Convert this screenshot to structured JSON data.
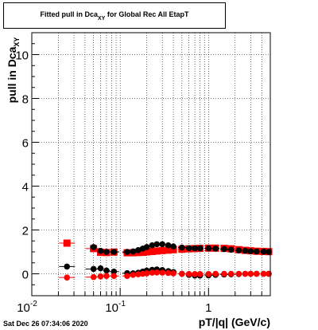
{
  "title": {
    "prefix": "Fitted pull in Dca",
    "subscript": "XY",
    "suffix": " for Global Rec All EtapT"
  },
  "ylabel": {
    "main": "pull in Dca",
    "subscript": "XY"
  },
  "xlabel": "pT/|q| (GeV/c)",
  "datestamp": "Sat Dec 26 07:34:06 2020",
  "chart_data": {
    "type": "scatter",
    "title": "Fitted pull in Dca_XY for Global Rec All EtapT",
    "xlabel": "pT/|q| (GeV/c)",
    "ylabel": "pull in Dca_XY",
    "xscale": "log",
    "xlim": [
      0.01,
      5
    ],
    "ylim": [
      -1,
      11
    ],
    "yticks": [
      0,
      2,
      4,
      6,
      8,
      10
    ],
    "xtick_labels": [
      "10^-2",
      "10^-1",
      "1"
    ],
    "grid": true,
    "series": [
      {
        "marker": "square",
        "color": "#ff0000",
        "points": [
          [
            0.025,
            1.4
          ],
          [
            0.05,
            1.15
          ],
          [
            0.06,
            0.98
          ],
          [
            0.07,
            0.97
          ],
          [
            0.085,
            0.99
          ],
          [
            0.12,
            0.96
          ],
          [
            0.14,
            0.96
          ],
          [
            0.16,
            0.97
          ],
          [
            0.18,
            0.98
          ],
          [
            0.2,
            1.0
          ],
          [
            0.23,
            1.02
          ],
          [
            0.26,
            1.04
          ],
          [
            0.3,
            1.06
          ],
          [
            0.35,
            1.08
          ],
          [
            0.4,
            1.1
          ],
          [
            0.5,
            1.12
          ],
          [
            0.6,
            1.14
          ],
          [
            0.7,
            1.15
          ],
          [
            0.8,
            1.16
          ],
          [
            1.0,
            1.17
          ],
          [
            1.2,
            1.17
          ],
          [
            1.5,
            1.16
          ],
          [
            1.8,
            1.14
          ],
          [
            2.2,
            1.1
          ],
          [
            2.6,
            1.07
          ],
          [
            3.0,
            1.05
          ],
          [
            3.5,
            1.03
          ],
          [
            4.2,
            1.02
          ],
          [
            4.8,
            1.01
          ]
        ]
      },
      {
        "marker": "circle",
        "color": "#000000",
        "points": [
          [
            0.025,
            0.33
          ],
          [
            0.05,
            0.22
          ],
          [
            0.06,
            0.25
          ],
          [
            0.07,
            0.15
          ],
          [
            0.085,
            0.1
          ],
          [
            0.12,
            0.03
          ],
          [
            0.14,
            0.02
          ],
          [
            0.16,
            0.05
          ],
          [
            0.18,
            0.1
          ],
          [
            0.2,
            0.15
          ],
          [
            0.23,
            0.18
          ],
          [
            0.26,
            0.2
          ],
          [
            0.3,
            0.17
          ],
          [
            0.35,
            0.12
          ],
          [
            0.4,
            0.08
          ],
          [
            0.5,
            0.0
          ],
          [
            0.6,
            -0.05
          ],
          [
            0.7,
            -0.08
          ],
          [
            0.8,
            -0.08
          ],
          [
            1.0,
            -0.07
          ],
          [
            1.2,
            -0.05
          ],
          [
            1.5,
            -0.03
          ],
          [
            1.8,
            -0.02
          ],
          [
            2.2,
            -0.01
          ],
          [
            2.6,
            0.0
          ],
          [
            3.0,
            0.0
          ],
          [
            3.5,
            0.0
          ],
          [
            4.2,
            0.0
          ],
          [
            4.8,
            0.0
          ]
        ]
      },
      {
        "marker": "circle",
        "color": "#000000",
        "points": [
          [
            0.05,
            1.22
          ],
          [
            0.06,
            1.05
          ],
          [
            0.07,
            1.0
          ],
          [
            0.085,
            1.0
          ],
          [
            0.12,
            1.0
          ],
          [
            0.14,
            1.02
          ],
          [
            0.16,
            1.08
          ],
          [
            0.18,
            1.15
          ],
          [
            0.2,
            1.22
          ],
          [
            0.23,
            1.3
          ],
          [
            0.26,
            1.35
          ],
          [
            0.3,
            1.35
          ],
          [
            0.35,
            1.3
          ],
          [
            0.4,
            1.25
          ],
          [
            0.5,
            1.2
          ],
          [
            0.6,
            1.17
          ],
          [
            0.7,
            1.16
          ],
          [
            0.8,
            1.16
          ],
          [
            1.0,
            1.16
          ],
          [
            1.2,
            1.15
          ],
          [
            1.5,
            1.13
          ],
          [
            1.8,
            1.1
          ],
          [
            2.2,
            1.07
          ],
          [
            2.6,
            1.05
          ],
          [
            3.0,
            1.03
          ],
          [
            3.5,
            1.02
          ],
          [
            4.2,
            1.01
          ],
          [
            4.8,
            1.0
          ]
        ]
      },
      {
        "marker": "circle",
        "color": "#ff0000",
        "points": [
          [
            0.025,
            -0.17
          ],
          [
            0.05,
            -0.15
          ],
          [
            0.06,
            -0.12
          ],
          [
            0.07,
            -0.1
          ],
          [
            0.085,
            -0.1
          ],
          [
            0.12,
            -0.1
          ],
          [
            0.14,
            -0.05
          ],
          [
            0.16,
            -0.02
          ],
          [
            0.18,
            0.0
          ],
          [
            0.2,
            0.02
          ],
          [
            0.23,
            0.05
          ],
          [
            0.26,
            0.06
          ],
          [
            0.3,
            0.05
          ],
          [
            0.35,
            0.04
          ],
          [
            0.4,
            0.02
          ],
          [
            0.5,
            0.0
          ],
          [
            0.6,
            -0.01
          ],
          [
            0.7,
            -0.01
          ],
          [
            0.8,
            -0.01
          ],
          [
            1.0,
            -0.01
          ],
          [
            1.2,
            0.0
          ],
          [
            1.5,
            0.0
          ],
          [
            1.8,
            0.0
          ],
          [
            2.2,
            0.0
          ],
          [
            2.6,
            0.0
          ],
          [
            3.0,
            0.0
          ],
          [
            3.5,
            0.0
          ],
          [
            4.2,
            0.0
          ],
          [
            4.8,
            0.0
          ]
        ]
      }
    ]
  }
}
